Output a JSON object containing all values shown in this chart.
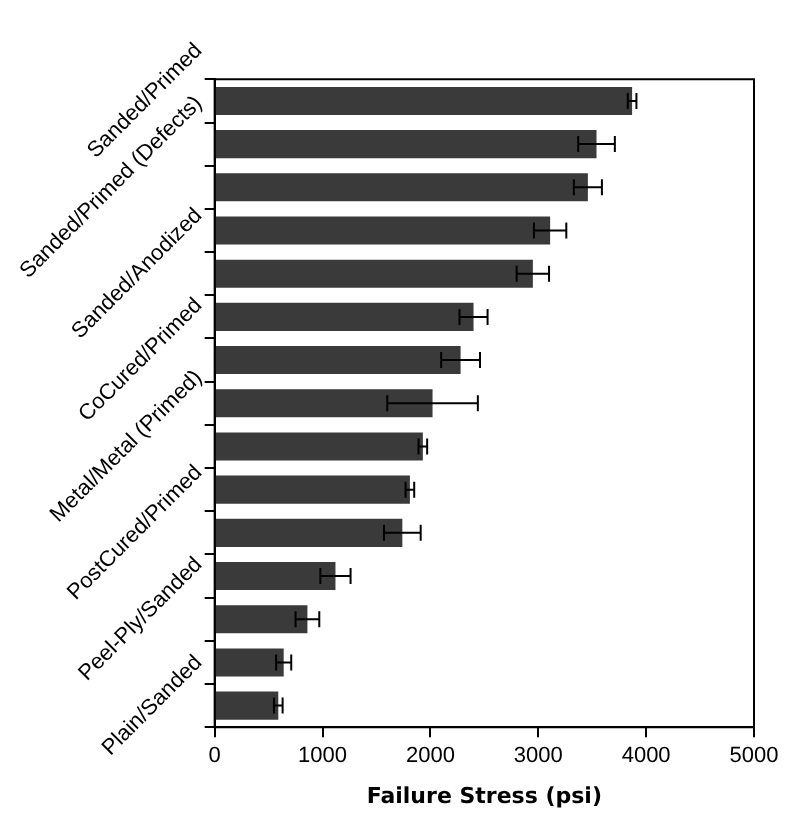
{
  "chart_data": {
    "type": "bar",
    "orientation": "horizontal",
    "xlabel": "Failure Stress (psi)",
    "categories": [
      "Sanded/Primed",
      null,
      "Sanded/Primed (Defects)",
      null,
      "Sanded/Anodized",
      null,
      "CoCured/Primed",
      null,
      "Metal/Metal (Primed)",
      null,
      "PostCured/Primed",
      null,
      "Peel-Ply/Sanded",
      null,
      "Plain/Sanded"
    ],
    "values": [
      3870,
      3540,
      3460,
      3110,
      2950,
      2400,
      2280,
      2020,
      1930,
      1810,
      1740,
      1120,
      860,
      640,
      590
    ],
    "errors": [
      40,
      170,
      130,
      150,
      150,
      130,
      180,
      420,
      40,
      40,
      170,
      140,
      110,
      70,
      40
    ],
    "color": "#3a3a3a",
    "xlim": [
      0,
      5000
    ],
    "xticks": [
      0,
      1000,
      2000,
      3000,
      4000,
      5000
    ],
    "grid": false,
    "legend": false
  }
}
